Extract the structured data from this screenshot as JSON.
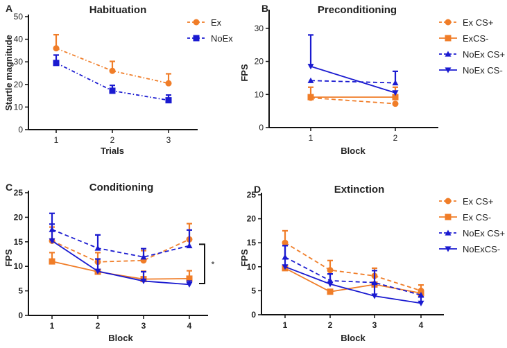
{
  "colors": {
    "Ex": "#f07d28",
    "NoEx": "#1a1ad0"
  },
  "chart_data": [
    {
      "type": "line",
      "panel_label": "A",
      "title": "Habituation",
      "xlabel": "Trials",
      "ylabel": "Startle magnitude",
      "categories": [
        "1",
        "2",
        "3"
      ],
      "ylim": [
        0,
        50
      ],
      "yticks": [
        0,
        10,
        20,
        30,
        40,
        50
      ],
      "grid": false,
      "legend": "top-right",
      "series": [
        {
          "name": "Ex",
          "group": "Ex",
          "marker": "circle",
          "line": "dashdot",
          "values": [
            36,
            26,
            20.5
          ],
          "err": [
            6,
            4.2,
            4.2
          ]
        },
        {
          "name": "NoEx",
          "group": "NoEx",
          "marker": "square",
          "line": "dashdot",
          "values": [
            29.5,
            17.2,
            13
          ],
          "err": [
            3.5,
            2.4,
            2.3
          ]
        }
      ]
    },
    {
      "type": "line",
      "panel_label": "B",
      "title": "Preconditioning",
      "xlabel": "Block",
      "ylabel": "FPS",
      "categories": [
        "1",
        "2"
      ],
      "ylim": [
        0,
        35
      ],
      "yticks": [
        0,
        10,
        20,
        30
      ],
      "grid": false,
      "legend": "right",
      "series": [
        {
          "name": "Ex CS+",
          "group": "Ex",
          "marker": "circle",
          "line": "dashed",
          "values": [
            9,
            7.2
          ],
          "err": [
            0,
            0
          ]
        },
        {
          "name": "ExCS-",
          "group": "Ex",
          "marker": "square",
          "line": "solid",
          "values": [
            9.2,
            9.2
          ],
          "err": [
            3,
            3
          ]
        },
        {
          "name": "NoEx CS+",
          "group": "NoEx",
          "marker": "triangle-up",
          "line": "dashed",
          "values": [
            14.2,
            13.5
          ],
          "err": [
            0,
            3.5
          ]
        },
        {
          "name": "NoEx CS-",
          "group": "NoEx",
          "marker": "triangle-down",
          "line": "solid",
          "values": [
            18.5,
            10.5
          ],
          "err": [
            9.5,
            0
          ]
        }
      ]
    },
    {
      "type": "line",
      "panel_label": "C",
      "title": "Conditioning",
      "xlabel": "Block",
      "ylabel": "FPS",
      "categories": [
        "1",
        "2",
        "3",
        "4"
      ],
      "ylim": [
        0,
        25
      ],
      "yticks": [
        0,
        5,
        10,
        15,
        20,
        25
      ],
      "grid": false,
      "legend": "none",
      "annotation": "*",
      "series": [
        {
          "name": "Ex CS+",
          "group": "Ex",
          "marker": "circle",
          "line": "dashed",
          "values": [
            15.2,
            10.9,
            11.2,
            15.5
          ],
          "err": [
            2.8,
            1.9,
            2.0,
            3.2
          ]
        },
        {
          "name": "Ex CS-",
          "group": "Ex",
          "marker": "square",
          "line": "solid",
          "values": [
            11,
            8.9,
            7.4,
            7.5
          ],
          "err": [
            1.8,
            0,
            1.6,
            1.6
          ]
        },
        {
          "name": "NoEx CS+",
          "group": "NoEx",
          "marker": "triangle-up",
          "line": "dashed",
          "values": [
            17.5,
            13.7,
            11.9,
            14.2
          ],
          "err": [
            3.3,
            2.7,
            1.7,
            3.2
          ]
        },
        {
          "name": "NoEx CS-",
          "group": "NoEx",
          "marker": "triangle-down",
          "line": "solid",
          "values": [
            15.2,
            9,
            7,
            6.3
          ],
          "err": [
            3.4,
            2.5,
            1.9,
            0.7
          ]
        }
      ]
    },
    {
      "type": "line",
      "panel_label": "D",
      "title": "Extinction",
      "xlabel": "Block",
      "ylabel": "FPS",
      "categories": [
        "1",
        "2",
        "3",
        "4"
      ],
      "ylim": [
        0,
        25
      ],
      "yticks": [
        0,
        5,
        10,
        15,
        20,
        25
      ],
      "grid": false,
      "legend": "right",
      "series": [
        {
          "name": "Ex CS+",
          "group": "Ex",
          "marker": "circle",
          "line": "dashed",
          "values": [
            15,
            9.3,
            8.1,
            5
          ],
          "err": [
            2.5,
            2,
            1.6,
            1.2
          ]
        },
        {
          "name": "Ex CS-",
          "group": "Ex",
          "marker": "square",
          "line": "solid",
          "values": [
            9.7,
            4.8,
            6.3,
            4.5
          ],
          "err": [
            0,
            0,
            0,
            0
          ]
        },
        {
          "name": "NoEx CS+",
          "group": "NoEx",
          "marker": "triangle-up",
          "line": "dashed",
          "values": [
            12,
            7.1,
            6.7,
            4.1
          ],
          "err": [
            2.4,
            1.4,
            2.5,
            0
          ]
        },
        {
          "name": "NoExCS-",
          "group": "NoEx",
          "marker": "triangle-down",
          "line": "solid",
          "values": [
            10,
            6.4,
            3.9,
            2.4
          ],
          "err": [
            4.4,
            2.1,
            2.6,
            1.3
          ]
        }
      ]
    }
  ]
}
